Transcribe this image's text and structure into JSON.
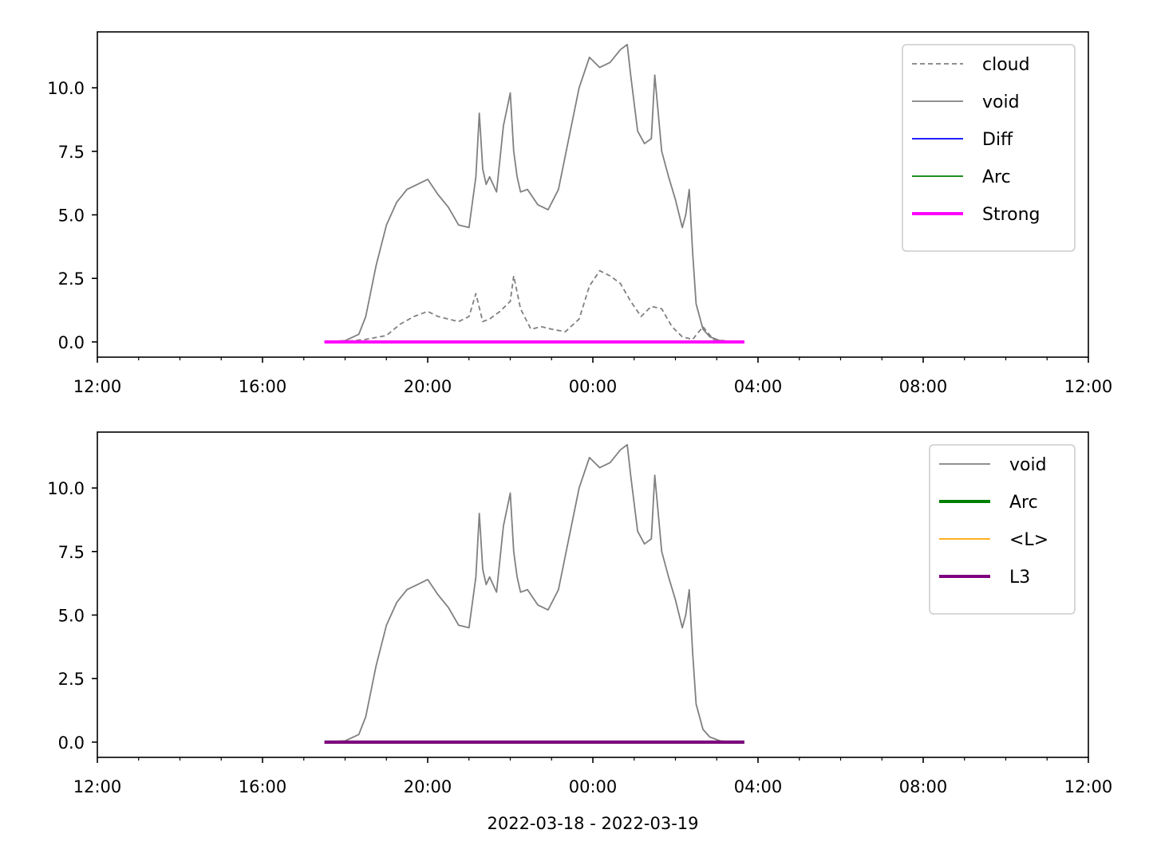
{
  "chart_data": [
    {
      "type": "line",
      "title": "",
      "xlabel": "",
      "ylabel": "",
      "xlim": [
        "2022-03-18 12:00",
        "2022-03-19 12:00"
      ],
      "ylim": [
        -0.6,
        12.2
      ],
      "yticks": [
        0.0,
        2.5,
        5.0,
        7.5,
        10.0
      ],
      "ytick_labels": [
        "0.0",
        "2.5",
        "5.0",
        "7.5",
        "10.0"
      ],
      "xtick_labels": [
        "12:00",
        "16:00",
        "20:00",
        "00:00",
        "04:00",
        "08:00",
        "12:00"
      ],
      "grid": false,
      "legend_position": "top-right",
      "legend": [
        "cloud",
        "void",
        "Diff",
        "Arc",
        "Strong"
      ],
      "series": [
        {
          "name": "cloud",
          "color": "#808080",
          "style": "dashed",
          "x": [
            "17:30",
            "18:00",
            "18:30",
            "19:00",
            "19:20",
            "19:40",
            "20:00",
            "20:15",
            "20:30",
            "20:45",
            "21:00",
            "21:10",
            "21:20",
            "21:30",
            "21:45",
            "22:00",
            "22:05",
            "22:15",
            "22:30",
            "22:45",
            "23:00",
            "23:20",
            "23:40",
            "23:55",
            "00:10",
            "00:25",
            "00:40",
            "00:55",
            "01:10",
            "01:25",
            "01:40",
            "01:55",
            "02:10",
            "02:25",
            "02:40",
            "02:55",
            "03:10",
            "03:25",
            "03:40"
          ],
          "y": [
            0.0,
            0.02,
            0.1,
            0.25,
            0.7,
            1.0,
            1.2,
            1.0,
            0.9,
            0.8,
            1.0,
            1.9,
            0.8,
            0.9,
            1.2,
            1.6,
            2.6,
            1.3,
            0.5,
            0.6,
            0.5,
            0.4,
            0.9,
            2.2,
            2.8,
            2.6,
            2.3,
            1.6,
            1.0,
            1.4,
            1.3,
            0.6,
            0.2,
            0.1,
            0.6,
            0.1,
            0.05,
            0.0,
            0.0
          ]
        },
        {
          "name": "void",
          "color": "#808080",
          "style": "solid",
          "x": [
            "17:30",
            "18:00",
            "18:20",
            "18:30",
            "18:45",
            "19:00",
            "19:15",
            "19:30",
            "19:45",
            "20:00",
            "20:15",
            "20:30",
            "20:45",
            "21:00",
            "21:10",
            "21:15",
            "21:20",
            "21:25",
            "21:30",
            "21:40",
            "21:50",
            "22:00",
            "22:05",
            "22:10",
            "22:15",
            "22:25",
            "22:40",
            "22:55",
            "23:10",
            "23:25",
            "23:40",
            "23:55",
            "00:10",
            "00:25",
            "00:40",
            "00:50",
            "00:55",
            "01:05",
            "01:15",
            "01:25",
            "01:30",
            "01:40",
            "01:50",
            "02:00",
            "02:10",
            "02:15",
            "02:20",
            "02:25",
            "02:30",
            "02:40",
            "02:50",
            "03:05",
            "03:20",
            "03:40"
          ],
          "y": [
            0.0,
            0.05,
            0.3,
            1.0,
            3.0,
            4.6,
            5.5,
            6.0,
            6.2,
            6.4,
            5.8,
            5.3,
            4.6,
            4.5,
            6.5,
            9.0,
            6.8,
            6.2,
            6.5,
            5.9,
            8.5,
            9.8,
            7.5,
            6.5,
            5.9,
            6.0,
            5.4,
            5.2,
            6.0,
            8.0,
            10.0,
            11.2,
            10.8,
            11.0,
            11.5,
            11.7,
            10.5,
            8.3,
            7.8,
            8.0,
            10.5,
            7.5,
            6.5,
            5.6,
            4.5,
            5.0,
            6.0,
            3.5,
            1.5,
            0.5,
            0.2,
            0.05,
            0.0,
            0.0
          ]
        },
        {
          "name": "Diff",
          "color": "#0000ff",
          "style": "solid",
          "x": [
            "17:30",
            "03:40"
          ],
          "y": [
            0.0,
            0.0
          ]
        },
        {
          "name": "Arc",
          "color": "#008000",
          "style": "solid",
          "x": [
            "17:30",
            "03:40"
          ],
          "y": [
            0.0,
            0.0
          ]
        },
        {
          "name": "Strong",
          "color": "#ff00ff",
          "style": "solid",
          "width": "thick",
          "x": [
            "17:30",
            "03:40"
          ],
          "y": [
            0.0,
            0.0
          ]
        }
      ]
    },
    {
      "type": "line",
      "title": "",
      "xlabel": "2022-03-18 - 2022-03-19",
      "ylabel": "",
      "xlim": [
        "2022-03-18 12:00",
        "2022-03-19 12:00"
      ],
      "ylim": [
        -0.6,
        12.2
      ],
      "yticks": [
        0.0,
        2.5,
        5.0,
        7.5,
        10.0
      ],
      "ytick_labels": [
        "0.0",
        "2.5",
        "5.0",
        "7.5",
        "10.0"
      ],
      "xtick_labels": [
        "12:00",
        "16:00",
        "20:00",
        "00:00",
        "04:00",
        "08:00",
        "12:00"
      ],
      "grid": false,
      "legend_position": "top-right",
      "legend": [
        "void",
        "Arc",
        "<L>",
        "L3"
      ],
      "series": [
        {
          "name": "void",
          "color": "#808080",
          "style": "solid",
          "x": [
            "17:30",
            "18:00",
            "18:20",
            "18:30",
            "18:45",
            "19:00",
            "19:15",
            "19:30",
            "19:45",
            "20:00",
            "20:15",
            "20:30",
            "20:45",
            "21:00",
            "21:10",
            "21:15",
            "21:20",
            "21:25",
            "21:30",
            "21:40",
            "21:50",
            "22:00",
            "22:05",
            "22:10",
            "22:15",
            "22:25",
            "22:40",
            "22:55",
            "23:10",
            "23:25",
            "23:40",
            "23:55",
            "00:10",
            "00:25",
            "00:40",
            "00:50",
            "00:55",
            "01:05",
            "01:15",
            "01:25",
            "01:30",
            "01:40",
            "01:50",
            "02:00",
            "02:10",
            "02:15",
            "02:20",
            "02:25",
            "02:30",
            "02:40",
            "02:50",
            "03:05",
            "03:20",
            "03:40"
          ],
          "y": [
            0.0,
            0.05,
            0.3,
            1.0,
            3.0,
            4.6,
            5.5,
            6.0,
            6.2,
            6.4,
            5.8,
            5.3,
            4.6,
            4.5,
            6.5,
            9.0,
            6.8,
            6.2,
            6.5,
            5.9,
            8.5,
            9.8,
            7.5,
            6.5,
            5.9,
            6.0,
            5.4,
            5.2,
            6.0,
            8.0,
            10.0,
            11.2,
            10.8,
            11.0,
            11.5,
            11.7,
            10.5,
            8.3,
            7.8,
            8.0,
            10.5,
            7.5,
            6.5,
            5.6,
            4.5,
            5.0,
            6.0,
            3.5,
            1.5,
            0.5,
            0.2,
            0.05,
            0.0,
            0.0
          ]
        },
        {
          "name": "Arc",
          "color": "#008000",
          "style": "solid",
          "width": "thick",
          "x": [
            "17:30",
            "03:40"
          ],
          "y": [
            0.0,
            0.0
          ]
        },
        {
          "name": "<L>",
          "color": "#ffa500",
          "style": "solid",
          "x": [
            "17:30",
            "03:40"
          ],
          "y": [
            0.0,
            0.0
          ]
        },
        {
          "name": "L3",
          "color": "#800080",
          "style": "solid",
          "width": "thick",
          "x": [
            "17:30",
            "03:40"
          ],
          "y": [
            0.0,
            0.0
          ]
        }
      ]
    }
  ]
}
